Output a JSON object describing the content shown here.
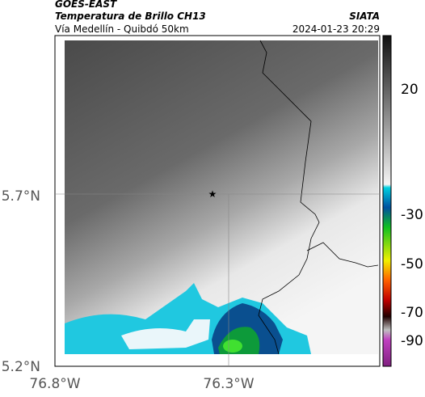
{
  "header": {
    "source": "GOES-EAST",
    "title": "Temperatura de Brillo CH13",
    "subtitle": "Vía Medellín - Quibdó 50km",
    "brand": "SIATA",
    "timestamp": "2024-01-23 20:29"
  },
  "map": {
    "lat_labels": [
      "5.7°N",
      "5.2°N"
    ],
    "lon_labels": [
      "76.8°W",
      "76.3°W"
    ]
  },
  "colorbar": {
    "tick_labels": [
      "20",
      "-30",
      "-50",
      "-70",
      "-90"
    ]
  }
}
